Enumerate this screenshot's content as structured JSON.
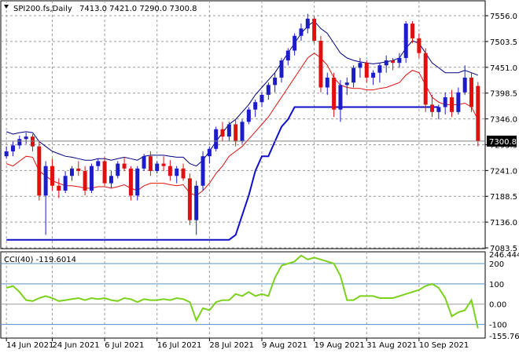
{
  "header": {
    "symbol_label": "SPI200.fs,Daily",
    "ohlc_label": "7413.0 7421.0 7290.0 7300.8",
    "dropdown_icon": "triangle-down-icon"
  },
  "cci_header": {
    "label": "CCI(40) -119.6014"
  },
  "colors": {
    "bull": "#1c1cc8",
    "bear": "#e01010",
    "envelope_upper": "#000080",
    "envelope_lower": "#e01010",
    "trend": "#1010c8",
    "cci": "#7cd11c",
    "grid": "#9a9a9a",
    "cci_level": "#5a8fc0"
  },
  "chart_data": [
    {
      "type": "candlestick",
      "title": "SPI200.fs,Daily",
      "last_price_label": "7300.8",
      "ylim": [
        7083.5,
        7580
      ],
      "ytick_labels": [
        "7556.0",
        "7503.5",
        "7451.0",
        "7398.5",
        "7346.0",
        "7293.5",
        "7241.0",
        "7188.5",
        "7136.0",
        "7083.5"
      ],
      "xtick_labels": [
        "14 Jun 2021",
        "24 Jun 2021",
        "6 Jul 2021",
        "16 Jul 2021",
        "28 Jul 2021",
        "9 Aug 2021",
        "19 Aug 2021",
        "31 Aug 2021",
        "10 Sep 2021"
      ],
      "grid": true,
      "bars_ohlc": [
        [
          7270,
          7290,
          7265,
          7280
        ],
        [
          7280,
          7300,
          7270,
          7292
        ],
        [
          7292,
          7312,
          7285,
          7305
        ],
        [
          7305,
          7318,
          7295,
          7310
        ],
        [
          7310,
          7315,
          7280,
          7290
        ],
        [
          7290,
          7300,
          7180,
          7190
        ],
        [
          7190,
          7260,
          7110,
          7250
        ],
        [
          7250,
          7265,
          7200,
          7210
        ],
        [
          7210,
          7225,
          7185,
          7200
        ],
        [
          7200,
          7240,
          7195,
          7230
        ],
        [
          7230,
          7250,
          7220,
          7245
        ],
        [
          7245,
          7260,
          7230,
          7240
        ],
        [
          7240,
          7250,
          7190,
          7200
        ],
        [
          7200,
          7255,
          7195,
          7250
        ],
        [
          7250,
          7265,
          7240,
          7260
        ],
        [
          7260,
          7268,
          7210,
          7215
        ],
        [
          7215,
          7240,
          7205,
          7230
        ],
        [
          7230,
          7260,
          7225,
          7255
        ],
        [
          7255,
          7268,
          7240,
          7245
        ],
        [
          7245,
          7250,
          7180,
          7190
        ],
        [
          7190,
          7250,
          7180,
          7245
        ],
        [
          7245,
          7275,
          7240,
          7270
        ],
        [
          7270,
          7280,
          7230,
          7240
        ],
        [
          7240,
          7260,
          7235,
          7255
        ],
        [
          7255,
          7270,
          7240,
          7250
        ],
        [
          7250,
          7262,
          7220,
          7230
        ],
        [
          7230,
          7250,
          7215,
          7245
        ],
        [
          7245,
          7255,
          7220,
          7225
        ],
        [
          7225,
          7235,
          7130,
          7140
        ],
        [
          7140,
          7220,
          7110,
          7210
        ],
        [
          7210,
          7280,
          7200,
          7270
        ],
        [
          7270,
          7290,
          7255,
          7285
        ],
        [
          7285,
          7330,
          7280,
          7325
        ],
        [
          7325,
          7340,
          7300,
          7310
        ],
        [
          7310,
          7340,
          7300,
          7335
        ],
        [
          7335,
          7345,
          7290,
          7300
        ],
        [
          7300,
          7345,
          7295,
          7340
        ],
        [
          7340,
          7370,
          7335,
          7365
        ],
        [
          7365,
          7385,
          7350,
          7380
        ],
        [
          7380,
          7400,
          7370,
          7395
        ],
        [
          7395,
          7420,
          7385,
          7415
        ],
        [
          7415,
          7440,
          7400,
          7430
        ],
        [
          7430,
          7470,
          7420,
          7465
        ],
        [
          7465,
          7490,
          7455,
          7485
        ],
        [
          7485,
          7520,
          7475,
          7515
        ],
        [
          7515,
          7540,
          7505,
          7530
        ],
        [
          7530,
          7560,
          7520,
          7550
        ],
        [
          7550,
          7555,
          7500,
          7505
        ],
        [
          7505,
          7515,
          7400,
          7410
        ],
        [
          7410,
          7440,
          7395,
          7430
        ],
        [
          7430,
          7440,
          7350,
          7365
        ],
        [
          7365,
          7425,
          7340,
          7415
        ],
        [
          7415,
          7430,
          7395,
          7420
        ],
        [
          7420,
          7455,
          7410,
          7450
        ],
        [
          7450,
          7470,
          7430,
          7460
        ],
        [
          7460,
          7465,
          7420,
          7430
        ],
        [
          7430,
          7445,
          7415,
          7440
        ],
        [
          7440,
          7460,
          7420,
          7455
        ],
        [
          7455,
          7475,
          7440,
          7465
        ],
        [
          7465,
          7470,
          7445,
          7460
        ],
        [
          7460,
          7480,
          7450,
          7470
        ],
        [
          7470,
          7545,
          7460,
          7540
        ],
        [
          7540,
          7545,
          7500,
          7510
        ],
        [
          7510,
          7520,
          7470,
          7480
        ],
        [
          7480,
          7490,
          7360,
          7375
        ],
        [
          7375,
          7395,
          7350,
          7360
        ],
        [
          7360,
          7375,
          7345,
          7370
        ],
        [
          7370,
          7400,
          7355,
          7390
        ],
        [
          7390,
          7405,
          7350,
          7360
        ],
        [
          7360,
          7410,
          7355,
          7400
        ],
        [
          7400,
          7455,
          7395,
          7430
        ],
        [
          7430,
          7440,
          7360,
          7370
        ],
        [
          7413,
          7421,
          7290,
          7300.8
        ]
      ],
      "upper_envelope": [
        7320,
        7315,
        7318,
        7320,
        7318,
        7300,
        7290,
        7280,
        7275,
        7270,
        7268,
        7265,
        7262,
        7262,
        7265,
        7265,
        7262,
        7265,
        7268,
        7265,
        7262,
        7270,
        7272,
        7272,
        7272,
        7270,
        7268,
        7268,
        7255,
        7250,
        7262,
        7280,
        7300,
        7318,
        7335,
        7345,
        7360,
        7375,
        7395,
        7410,
        7425,
        7440,
        7460,
        7480,
        7500,
        7520,
        7535,
        7545,
        7530,
        7520,
        7500,
        7480,
        7470,
        7465,
        7462,
        7460,
        7458,
        7460,
        7462,
        7465,
        7470,
        7490,
        7505,
        7500,
        7480,
        7460,
        7450,
        7440,
        7440,
        7440,
        7445,
        7440,
        7435
      ],
      "lower_envelope": [
        7255,
        7250,
        7260,
        7270,
        7268,
        7240,
        7230,
        7220,
        7215,
        7210,
        7210,
        7208,
        7205,
        7205,
        7208,
        7208,
        7205,
        7208,
        7212,
        7205,
        7200,
        7210,
        7215,
        7215,
        7215,
        7212,
        7210,
        7212,
        7195,
        7190,
        7200,
        7215,
        7235,
        7250,
        7270,
        7280,
        7290,
        7305,
        7320,
        7335,
        7350,
        7370,
        7390,
        7410,
        7430,
        7450,
        7470,
        7480,
        7470,
        7455,
        7430,
        7415,
        7410,
        7408,
        7408,
        7405,
        7405,
        7408,
        7410,
        7415,
        7420,
        7435,
        7445,
        7440,
        7415,
        7390,
        7380,
        7375,
        7375,
        7375,
        7378,
        7370,
        7345
      ],
      "trend_line": [
        7100,
        7100,
        7100,
        7100,
        7100,
        7100,
        7100,
        7100,
        7100,
        7100,
        7100,
        7100,
        7100,
        7100,
        7100,
        7100,
        7100,
        7100,
        7100,
        7100,
        7100,
        7100,
        7100,
        7100,
        7100,
        7100,
        7100,
        7100,
        7100,
        7100,
        7100,
        7100,
        7100,
        7100,
        7100,
        7110,
        7150,
        7190,
        7240,
        7270,
        7270,
        7300,
        7330,
        7345,
        7370,
        7370,
        7370,
        7370,
        7370,
        7370,
        7370,
        7370,
        7370,
        7370,
        7370,
        7370,
        7370,
        7370,
        7370,
        7370,
        7370,
        7370,
        7370,
        7370,
        7370,
        7370,
        7370,
        null,
        null,
        null,
        null,
        null,
        null
      ]
    },
    {
      "type": "line",
      "title": "CCI(40)",
      "ylim": [
        -155.7698,
        246.4442
      ],
      "ytick_labels": [
        "246.4442",
        "200",
        "100",
        "0.00",
        "-100",
        "-155.7698"
      ],
      "levels": [
        200,
        100,
        0,
        -100
      ],
      "series": [
        {
          "values": [
            80,
            90,
            60,
            20,
            15,
            30,
            40,
            30,
            15,
            20,
            25,
            30,
            20,
            30,
            25,
            30,
            20,
            15,
            30,
            25,
            10,
            25,
            20,
            20,
            25,
            20,
            30,
            25,
            10,
            -80,
            -20,
            -30,
            10,
            20,
            20,
            50,
            40,
            60,
            40,
            50,
            40,
            130,
            190,
            200,
            210,
            240,
            220,
            230,
            220,
            210,
            200,
            140,
            20,
            20,
            40,
            40,
            40,
            30,
            30,
            30,
            40,
            50,
            60,
            70,
            90,
            100,
            80,
            30,
            -60,
            -40,
            -30,
            20,
            -119.6
          ]
        }
      ]
    }
  ]
}
